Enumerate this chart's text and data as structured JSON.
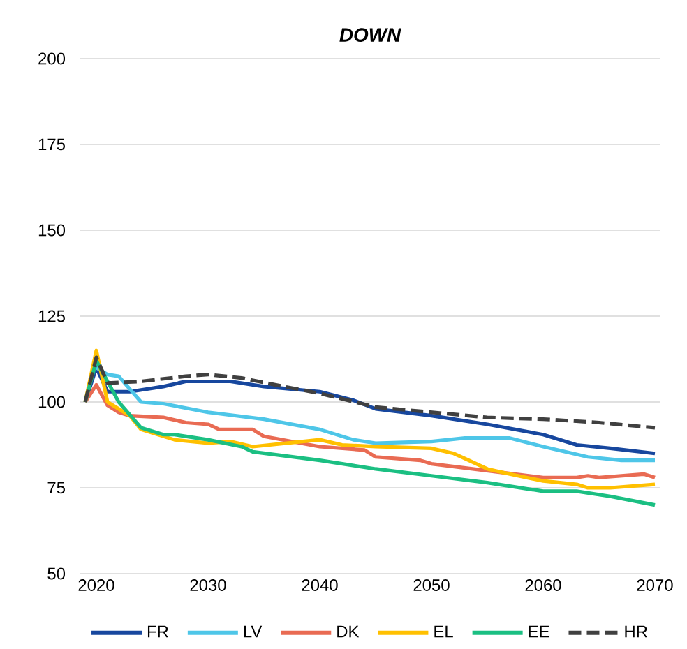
{
  "chart_data": {
    "type": "line",
    "title": "**DOWN**",
    "xlim": [
      2018.5,
      2070.5
    ],
    "ylim": [
      50,
      200
    ],
    "xticks": [
      2020,
      2030,
      2040,
      2050,
      2060,
      2070
    ],
    "yticks": [
      50,
      75,
      100,
      125,
      150,
      175,
      200
    ],
    "grid": "y",
    "legend": "bottom",
    "marker": "none",
    "series": [
      {
        "name": "FR",
        "color": "#17479e",
        "line_style": "solid",
        "x": [
          2019,
          2020,
          2021,
          2023,
          2026,
          2028,
          2032,
          2035,
          2040,
          2043,
          2045,
          2050,
          2055,
          2060,
          2063,
          2066,
          2070
        ],
        "values": [
          100,
          110,
          103,
          103,
          104.5,
          106,
          106,
          104.5,
          103,
          100.5,
          98,
          96,
          93.5,
          90.5,
          87.5,
          86.5,
          85
        ]
      },
      {
        "name": "LV",
        "color": "#4ec6e8",
        "line_style": "solid",
        "x": [
          2020,
          2021,
          2022,
          2024,
          2026,
          2030,
          2035,
          2040,
          2043,
          2045,
          2050,
          2053,
          2057,
          2060,
          2064,
          2067,
          2070
        ],
        "values": [
          110,
          108,
          107.5,
          100,
          99.5,
          97,
          95,
          92,
          89,
          88,
          88.5,
          89.5,
          89.5,
          87,
          84,
          83,
          83
        ]
      },
      {
        "name": "DK",
        "color": "#e96b53",
        "line_style": "solid",
        "x": [
          2019,
          2020,
          2021,
          2022,
          2023,
          2026,
          2028,
          2030,
          2031,
          2034,
          2035,
          2040,
          2044,
          2045,
          2049,
          2050,
          2055,
          2060,
          2063,
          2064,
          2065,
          2069,
          2070
        ],
        "values": [
          100,
          105,
          99,
          97,
          96,
          95.5,
          94,
          93.5,
          92,
          92,
          90,
          87,
          86,
          84,
          83,
          82,
          80,
          78,
          78,
          78.5,
          78,
          79,
          78
        ]
      },
      {
        "name": "EL",
        "color": "#ffc000",
        "line_style": "solid",
        "x": [
          2019,
          2020,
          2021,
          2023,
          2024,
          2027,
          2030,
          2032,
          2034,
          2040,
          2042,
          2045,
          2050,
          2052,
          2053,
          2055,
          2057,
          2060,
          2063,
          2064,
          2066,
          2070
        ],
        "values": [
          100,
          115,
          100,
          96,
          92,
          89,
          88,
          88.5,
          87,
          89,
          87.5,
          87,
          86.5,
          85,
          83.5,
          80.5,
          79,
          77,
          76,
          75,
          75,
          76
        ]
      },
      {
        "name": "EE",
        "color": "#1bbf82",
        "line_style": "solid",
        "x": [
          2019,
          2020,
          2022,
          2024,
          2026,
          2027,
          2030,
          2033,
          2034,
          2040,
          2045,
          2050,
          2055,
          2060,
          2063,
          2066,
          2070
        ],
        "values": [
          100,
          112,
          100,
          92.5,
          90.5,
          90.5,
          89,
          87,
          85.5,
          83,
          80.5,
          78.5,
          76.5,
          74,
          74,
          72.5,
          70
        ]
      },
      {
        "name": "HR",
        "color": "#404040",
        "line_style": "dashed",
        "x": [
          2019,
          2020,
          2021,
          2024,
          2028,
          2030,
          2033,
          2036,
          2040,
          2045,
          2050,
          2055,
          2060,
          2065,
          2070
        ],
        "values": [
          100,
          113,
          105.5,
          106,
          107.5,
          108,
          107,
          105,
          102.5,
          98.5,
          97,
          95.5,
          95,
          94,
          92.5
        ]
      }
    ]
  }
}
